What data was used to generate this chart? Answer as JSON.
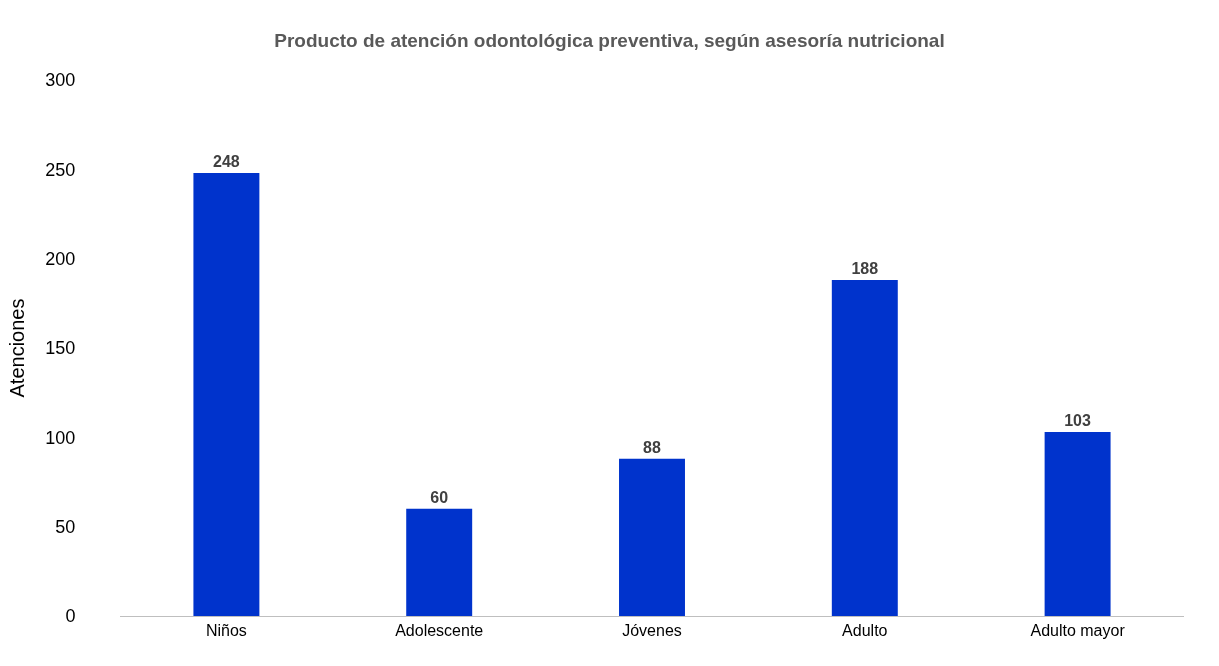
{
  "chart_data": {
    "type": "bar",
    "title": "Producto de atención odontológica preventiva, según asesoría nutricional",
    "ylabel": "Atenciones",
    "categories": [
      "Niños",
      "Adolescente",
      "Jóvenes",
      "Adulto",
      "Adulto mayor"
    ],
    "values": [
      248,
      60,
      88,
      188,
      103
    ],
    "color": "#0033cc",
    "ylim": [
      0,
      300
    ],
    "yticks": [
      0,
      50,
      100,
      150,
      200,
      250,
      300
    ],
    "grid": false,
    "data_labels": true
  }
}
